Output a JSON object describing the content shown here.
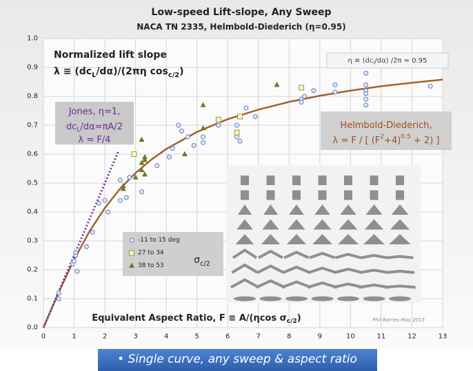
{
  "chart_data": {
    "type": "scatter",
    "title": "Low-speed Lift-slope, Any Sweep",
    "subtitle": "NACA TN 2335, Helmbold-Diederich (η=0.95)",
    "xlim": [
      0,
      13
    ],
    "xticks": [
      0,
      1,
      2,
      3,
      4,
      5,
      6,
      7,
      8,
      9,
      10,
      11,
      12,
      13
    ],
    "ylim": [
      0,
      1
    ],
    "yticks": [
      {
        "value": 0,
        "label": "0.0"
      },
      0.1,
      0.2,
      0.3,
      0.4,
      0.5,
      0.6,
      0.7,
      0.8,
      0.9,
      {
        "value": 1,
        "label": "1.0"
      }
    ],
    "grid": true,
    "series": [
      {
        "kind": "line",
        "color": "#a3612c",
        "x": [
          0,
          0.5,
          1,
          1.5,
          2,
          2.5,
          3,
          3.5,
          4,
          5,
          6,
          7,
          8,
          9,
          10,
          11,
          12,
          13
        ],
        "values": [
          0,
          0.123,
          0.236,
          0.333,
          0.414,
          0.481,
          0.535,
          0.58,
          0.618,
          0.677,
          0.721,
          0.754,
          0.781,
          0.802,
          0.82,
          0.835,
          0.847,
          0.858
        ]
      },
      {
        "kind": "line",
        "color": "#7030a0",
        "dash": true,
        "x": [
          0,
          2.44
        ],
        "values": [
          0,
          0.61
        ]
      },
      {
        "kind": "scatter",
        "name": "-11 to 15 deg",
        "marker": "circle",
        "color": "#5b7fc4",
        "x": [
          0.5,
          0.5,
          0.95,
          1.0,
          1.05,
          1.05,
          1.1,
          1.4,
          1.6,
          1.8,
          2.0,
          2.1,
          2.5,
          2.7,
          2.5,
          2.8,
          3.2,
          3.7,
          4.1,
          4.2,
          4.4,
          4.5,
          4.9,
          4.7,
          5.2,
          5.2,
          5.7,
          5.7,
          6.3,
          6.3,
          6.4,
          6.6,
          6.9,
          8.4,
          8.4,
          8.5,
          8.8,
          9.5,
          9.5,
          10.5,
          10.5,
          10.5,
          10.5,
          10.5,
          10.5,
          12.6
        ],
        "values": [
          0.12,
          0.1,
          0.22,
          0.23,
          0.25,
          0.26,
          0.195,
          0.28,
          0.33,
          0.43,
          0.44,
          0.4,
          0.44,
          0.45,
          0.51,
          0.52,
          0.47,
          0.56,
          0.59,
          0.62,
          0.7,
          0.68,
          0.63,
          0.66,
          0.66,
          0.64,
          0.71,
          0.7,
          0.7,
          0.66,
          0.645,
          0.76,
          0.73,
          0.79,
          0.78,
          0.8,
          0.82,
          0.84,
          0.815,
          0.88,
          0.84,
          0.82,
          0.81,
          0.79,
          0.77,
          0.835
        ]
      },
      {
        "kind": "scatter",
        "name": "27 to 34",
        "marker": "square",
        "color": "#ffff99",
        "x": [
          2.95,
          5.7,
          6.4,
          6.3,
          8.4
        ],
        "values": [
          0.6,
          0.72,
          0.73,
          0.675,
          0.83
        ]
      },
      {
        "kind": "scatter",
        "name": "38 to 53",
        "marker": "triangle",
        "color": "#6b7a2c",
        "x": [
          2.6,
          2.6,
          3.0,
          3.2,
          3.2,
          3.3,
          3.3,
          3.3,
          3.2,
          5.2,
          5.2,
          4.6,
          7.6
        ],
        "values": [
          0.49,
          0.48,
          0.52,
          0.57,
          0.545,
          0.59,
          0.58,
          0.53,
          0.65,
          0.77,
          0.69,
          0.6,
          0.84
        ]
      }
    ],
    "annotations": [
      [
        {
          "text": "Normalized lift slope"
        }
      ],
      [
        {
          "text": "λ ≡ (dc"
        },
        {
          "text": "L",
          "style": "sub"
        },
        {
          "text": "/dα)/(2πη cos"
        },
        {
          "text": "c/2",
          "style": "sub"
        },
        {
          "text": ")"
        }
      ],
      [
        {
          "text": "η ≡ (dc"
        },
        {
          "text": "l",
          "style": "sub"
        },
        {
          "text": "/dα) /2π ≈ 0.95"
        }
      ],
      [
        {
          "text": "Jones, η=1,"
        }
      ],
      [
        {
          "text": "dc"
        },
        {
          "text": "L",
          "style": "sub"
        },
        {
          "text": "/dα=πA/2"
        }
      ],
      [
        {
          "text": "λ = F/4"
        }
      ],
      [
        {
          "text": "Helmbold-Diederich,"
        }
      ],
      [
        {
          "text": "λ = F / [ (F"
        },
        {
          "text": "2",
          "style": "sup"
        },
        {
          "text": "+4)"
        },
        {
          "text": "0.5",
          "style": "sup"
        },
        {
          "text": " + 2) ]"
        }
      ],
      [
        {
          "text": "Equivalent Aspect Ratio, F ≡ A/(ηcos σ"
        },
        {
          "text": "c/2",
          "style": "sub"
        },
        {
          "text": ")"
        }
      ],
      [
        {
          "text": "Phil Barnes May 2013"
        }
      ],
      [
        {
          "text": "σ"
        },
        {
          "text": "c/2",
          "style": "sub"
        }
      ],
      [
        {
          "text": "• Single curve, any sweep & aspect ratio"
        }
      ]
    ]
  }
}
